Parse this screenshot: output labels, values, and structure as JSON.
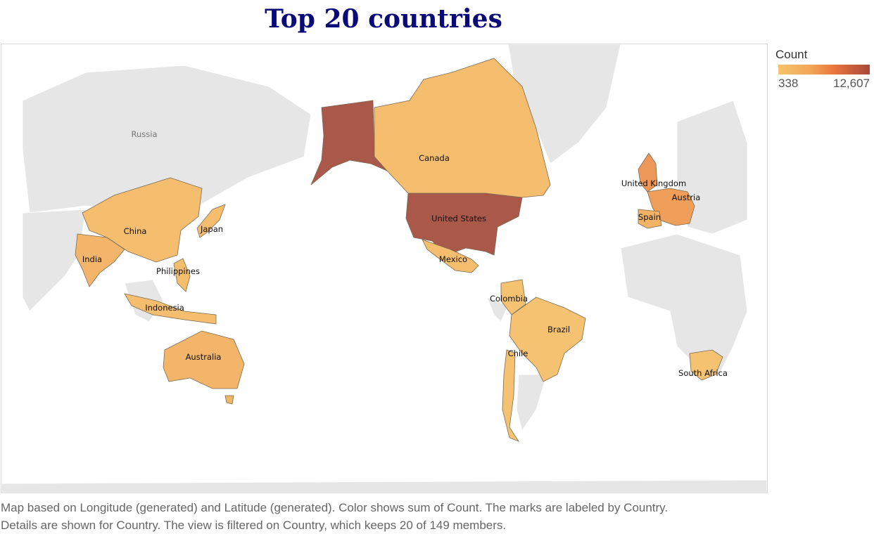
{
  "title": "Top 20 countries",
  "legend": {
    "title": "Count",
    "min_label": "338",
    "max_label": "12,607",
    "color_low": "#f7c46a",
    "color_mid": "#e8743c",
    "color_high": "#a9473a"
  },
  "map": {
    "background_label": "Russia",
    "countries": [
      {
        "name": "United States",
        "color": "#a9584a"
      },
      {
        "name": "Canada",
        "color": "#f5be6e"
      },
      {
        "name": "Mexico",
        "color": "#f5be6e"
      },
      {
        "name": "United Kingdom",
        "color": "#ed9858"
      },
      {
        "name": "Austria",
        "color": "#ef9f5a"
      },
      {
        "name": "Spain",
        "color": "#f3b365"
      },
      {
        "name": "China",
        "color": "#f5be6e"
      },
      {
        "name": "India",
        "color": "#f3b569"
      },
      {
        "name": "Japan",
        "color": "#f5be6e"
      },
      {
        "name": "Philippines",
        "color": "#f5be6e"
      },
      {
        "name": "Indonesia",
        "color": "#f5be6e"
      },
      {
        "name": "Australia",
        "color": "#f3b569"
      },
      {
        "name": "Colombia",
        "color": "#f5c271"
      },
      {
        "name": "Brazil",
        "color": "#f5c271"
      },
      {
        "name": "Chile",
        "color": "#f5c271"
      },
      {
        "name": "South Africa",
        "color": "#f5c271"
      }
    ]
  },
  "caption": {
    "line1": "Map based on Longitude (generated) and Latitude (generated).  Color shows sum of Count.  The marks are labeled by Country.",
    "line2": "Details are shown for Country. The view is filtered on Country, which keeps 20 of 149 members."
  }
}
